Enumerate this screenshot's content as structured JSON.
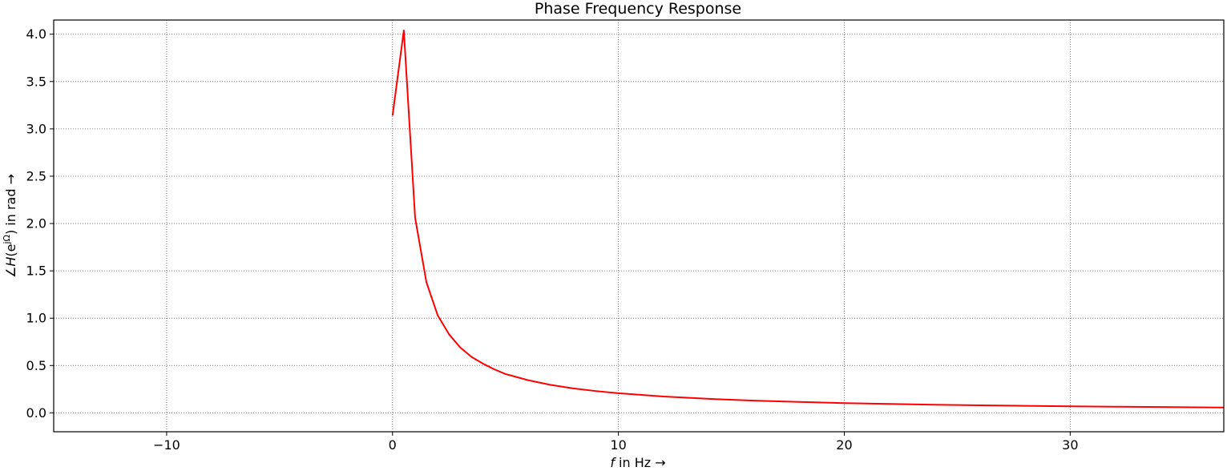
{
  "chart_data": {
    "type": "line",
    "title": "Phase Frequency Response",
    "xlabel_prefix": "f",
    "xlabel_suffix": " in Hz →",
    "ylabel_prefix": "∠",
    "ylabel_var": "H",
    "ylabel_open": "(e",
    "ylabel_sup": "jΩ",
    "ylabel_close": ") in rad →",
    "xlim": [
      -15,
      36.8
    ],
    "ylim": [
      -0.2,
      4.15
    ],
    "xticks": [
      -10,
      0,
      10,
      20,
      30
    ],
    "xtick_labels": [
      "−10",
      "0",
      "10",
      "20",
      "30"
    ],
    "yticks": [
      0.0,
      0.5,
      1.0,
      1.5,
      2.0,
      2.5,
      3.0,
      3.5,
      4.0
    ],
    "ytick_labels": [
      "0.0",
      "0.5",
      "1.0",
      "1.5",
      "2.0",
      "2.5",
      "3.0",
      "3.5",
      "4.0"
    ],
    "grid": true,
    "line_color": "#ff0000",
    "series": [
      {
        "x": [
          0,
          0.5,
          1,
          1.5,
          2,
          2.5,
          3,
          3.5,
          4,
          4.5,
          5,
          6,
          7,
          8,
          9,
          10,
          12,
          14,
          16,
          18,
          20,
          22,
          24,
          26,
          28,
          30,
          32,
          34,
          36.8
        ],
        "y": [
          3.14,
          4.04,
          2.06,
          1.38,
          1.03,
          0.83,
          0.69,
          0.59,
          0.52,
          0.46,
          0.41,
          0.345,
          0.295,
          0.258,
          0.23,
          0.207,
          0.172,
          0.148,
          0.129,
          0.115,
          0.103,
          0.094,
          0.086,
          0.079,
          0.074,
          0.069,
          0.065,
          0.061,
          0.056
        ]
      }
    ]
  }
}
